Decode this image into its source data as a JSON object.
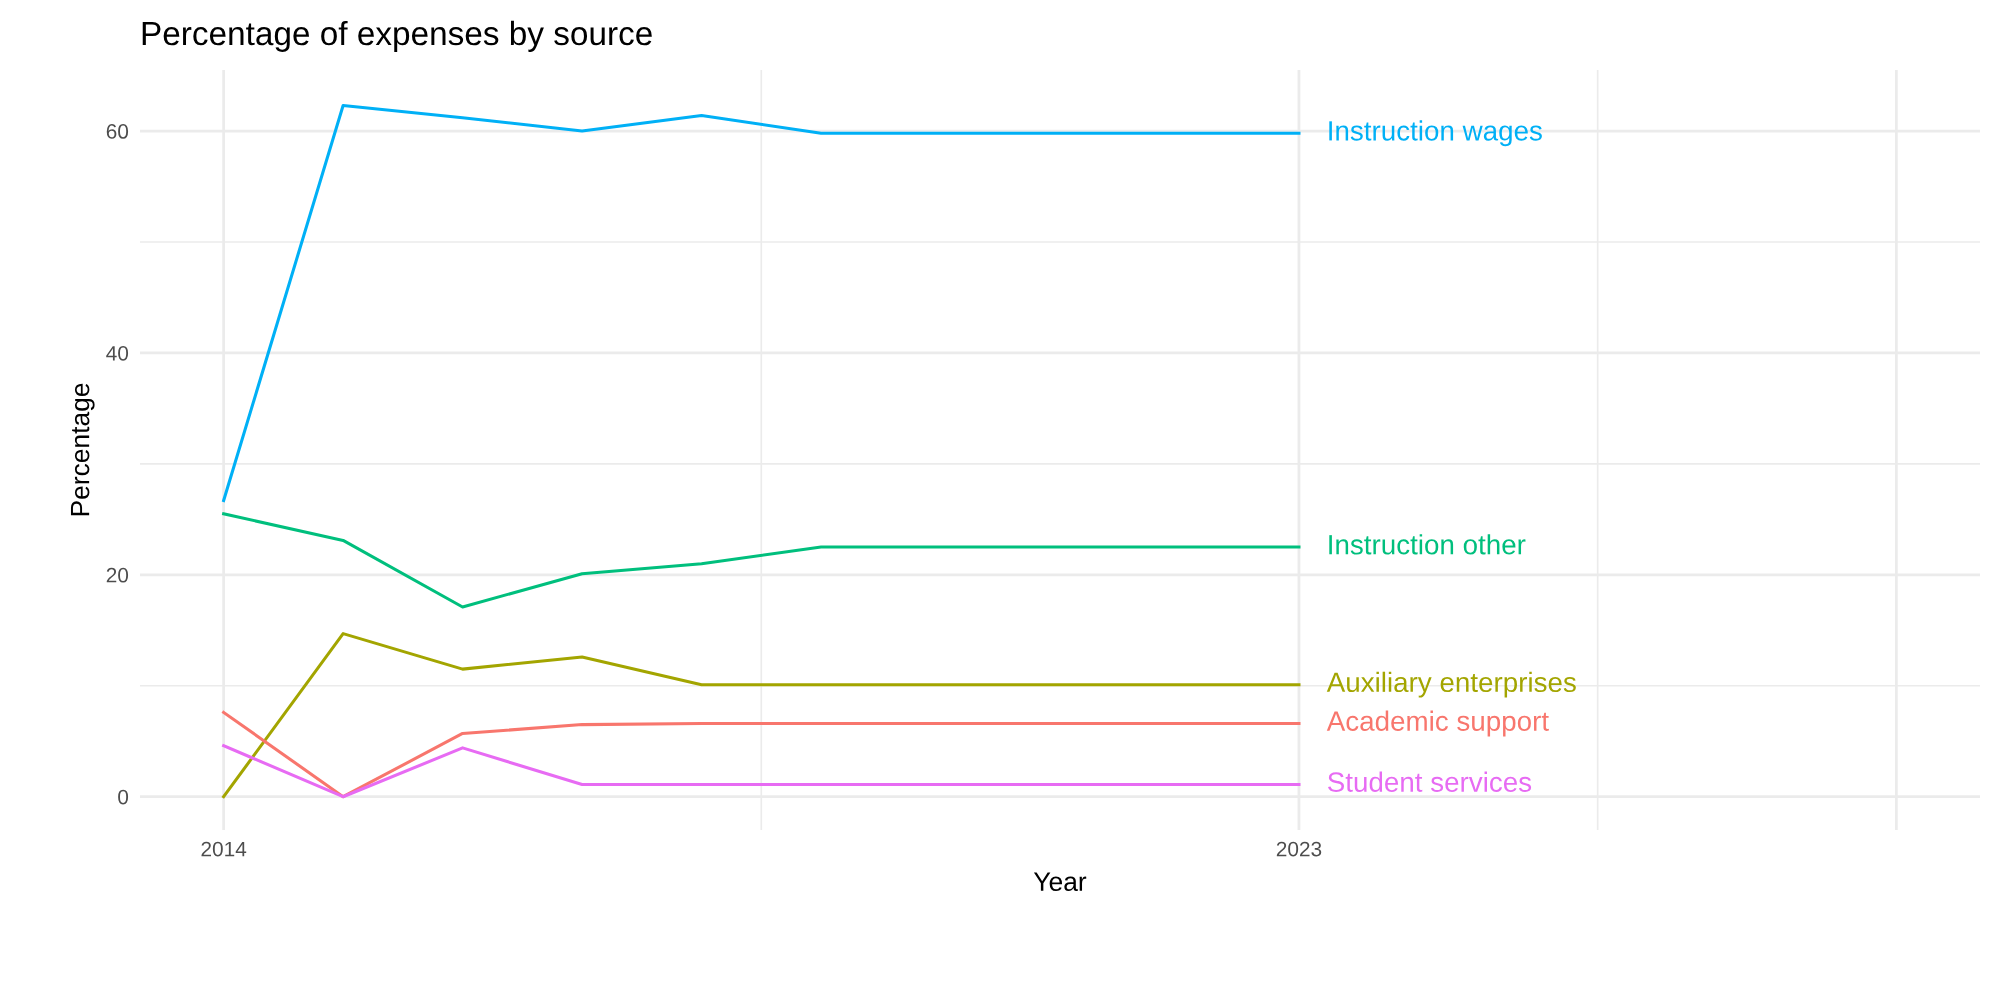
{
  "chart_data": {
    "type": "line",
    "title": "Percentage of expenses by source",
    "xlabel": "Year",
    "ylabel": "Percentage",
    "x": [
      2014,
      2015,
      2016,
      2017,
      2018,
      2019,
      2020,
      2021,
      2022,
      2023
    ],
    "series": [
      {
        "name": "Instruction wages",
        "color": "#00b0f6",
        "values": [
          26.7,
          62.3,
          61.2,
          60.0,
          61.4,
          59.8,
          59.8,
          59.8,
          59.8,
          59.8
        ]
      },
      {
        "name": "Instruction other",
        "color": "#00bf7d",
        "values": [
          25.5,
          23.1,
          17.1,
          20.1,
          21.0,
          22.5,
          22.5,
          22.5,
          22.5,
          22.5
        ]
      },
      {
        "name": "Auxiliary enterprises",
        "color": "#a3a500",
        "values": [
          0.0,
          14.7,
          11.5,
          12.6,
          10.1,
          10.1,
          10.1,
          10.1,
          10.1,
          10.1
        ]
      },
      {
        "name": "Academic support",
        "color": "#f8766d",
        "values": [
          7.6,
          0.0,
          5.7,
          6.5,
          6.6,
          6.6,
          6.6,
          6.6,
          6.6,
          6.6
        ]
      },
      {
        "name": "Student services",
        "color": "#e76bf3",
        "values": [
          4.6,
          0.0,
          4.4,
          1.1,
          1.1,
          1.1,
          1.1,
          1.1,
          1.1,
          1.1
        ]
      }
    ],
    "xlim": [
      2013.3,
      2028.7
    ],
    "ylim": [
      -3,
      65.5
    ],
    "xticks": [
      2014,
      2023,
      {
        "value": 2028,
        "label": null
      }
    ],
    "yticks": [
      0,
      20,
      40,
      60
    ],
    "grid": true,
    "legend": false,
    "marker": "none",
    "line_style": "solid"
  }
}
